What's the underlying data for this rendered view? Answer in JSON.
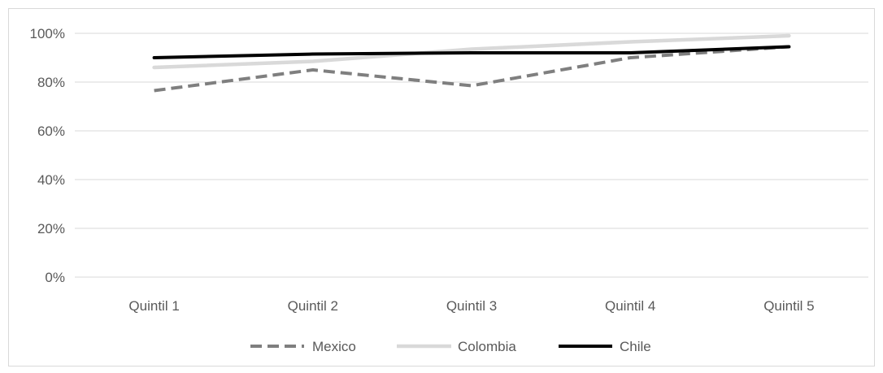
{
  "chart_data": {
    "type": "line",
    "categories": [
      "Quintil 1",
      "Quintil 2",
      "Quintil 3",
      "Quintil 4",
      "Quintil 5"
    ],
    "series": [
      {
        "name": "Mexico",
        "values": [
          76.5,
          85,
          78.5,
          90,
          94.5
        ],
        "color": "#7f7f7f",
        "style": "dashed"
      },
      {
        "name": "Colombia",
        "values": [
          86,
          88.5,
          93.5,
          96.5,
          99
        ],
        "color": "#d9d9d9",
        "style": "solid"
      },
      {
        "name": "Chile",
        "values": [
          90,
          91.5,
          92,
          92,
          94.5
        ],
        "color": "#000000",
        "style": "solid"
      }
    ],
    "yticks": [
      "0%",
      "20%",
      "40%",
      "60%",
      "80%",
      "100%"
    ],
    "ylim": [
      0,
      100
    ],
    "grid": true,
    "legend": "bottom"
  }
}
